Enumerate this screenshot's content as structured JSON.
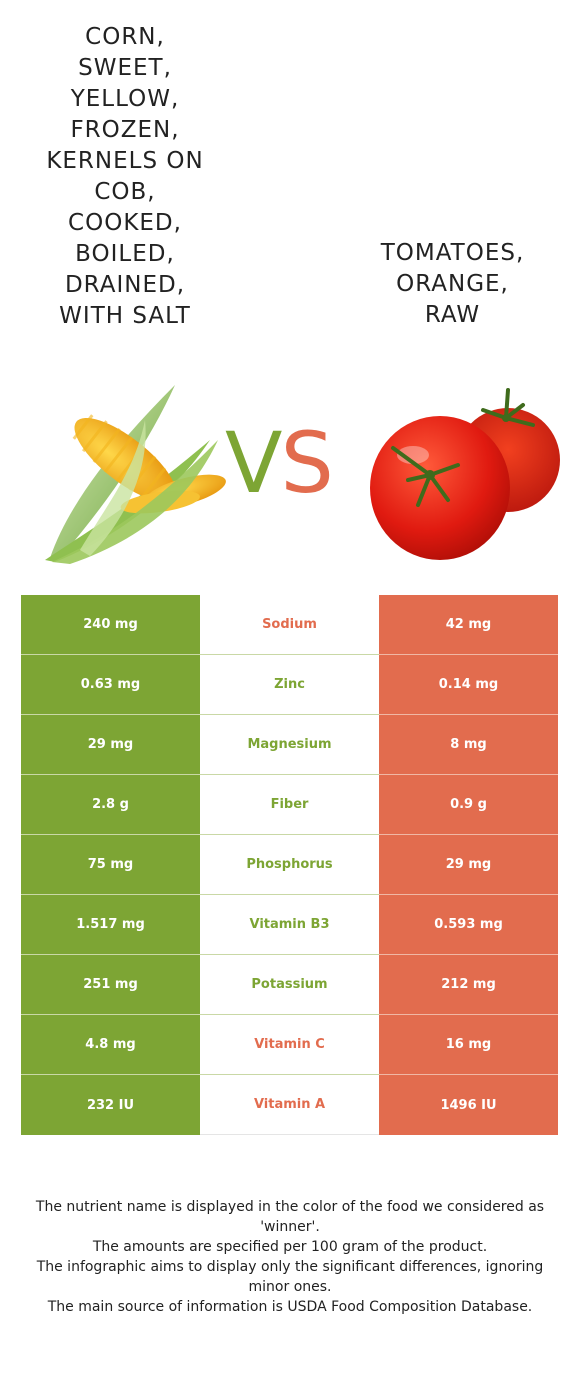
{
  "left_food": {
    "title": "CORN,\nSWEET,\nYELLOW,\nFROZEN,\nKERNELS ON\nCOB,\nCOOKED,\nBOILED,\nDRAINED,\nWITH SALT",
    "color": "#7da534",
    "image": "corn-icon"
  },
  "right_food": {
    "title": "TOMATOES,\nORANGE,\nRAW",
    "color": "#e26c4e",
    "image": "tomato-icon"
  },
  "vs": {
    "v": "V",
    "s": "S"
  },
  "rows": [
    {
      "left": "240 mg",
      "nutrient": "Sodium",
      "right": "42 mg",
      "winner": "right"
    },
    {
      "left": "0.63 mg",
      "nutrient": "Zinc",
      "right": "0.14 mg",
      "winner": "left"
    },
    {
      "left": "29 mg",
      "nutrient": "Magnesium",
      "right": "8 mg",
      "winner": "left"
    },
    {
      "left": "2.8 g",
      "nutrient": "Fiber",
      "right": "0.9 g",
      "winner": "left"
    },
    {
      "left": "75 mg",
      "nutrient": "Phosphorus",
      "right": "29 mg",
      "winner": "left"
    },
    {
      "left": "1.517 mg",
      "nutrient": "Vitamin B3",
      "right": "0.593 mg",
      "winner": "left"
    },
    {
      "left": "251 mg",
      "nutrient": "Potassium",
      "right": "212 mg",
      "winner": "left"
    },
    {
      "left": "4.8 mg",
      "nutrient": "Vitamin C",
      "right": "16 mg",
      "winner": "right"
    },
    {
      "left": "232 IU",
      "nutrient": "Vitamin A",
      "right": "1496 IU",
      "winner": "right"
    }
  ],
  "footer": [
    "The nutrient name is displayed in the color of the food we considered as 'winner'.",
    "The amounts are specified per 100 gram of the product.",
    "The infographic aims to display only the significant differences, ignoring minor ones.",
    "The main source of information is USDA Food Composition Database."
  ]
}
